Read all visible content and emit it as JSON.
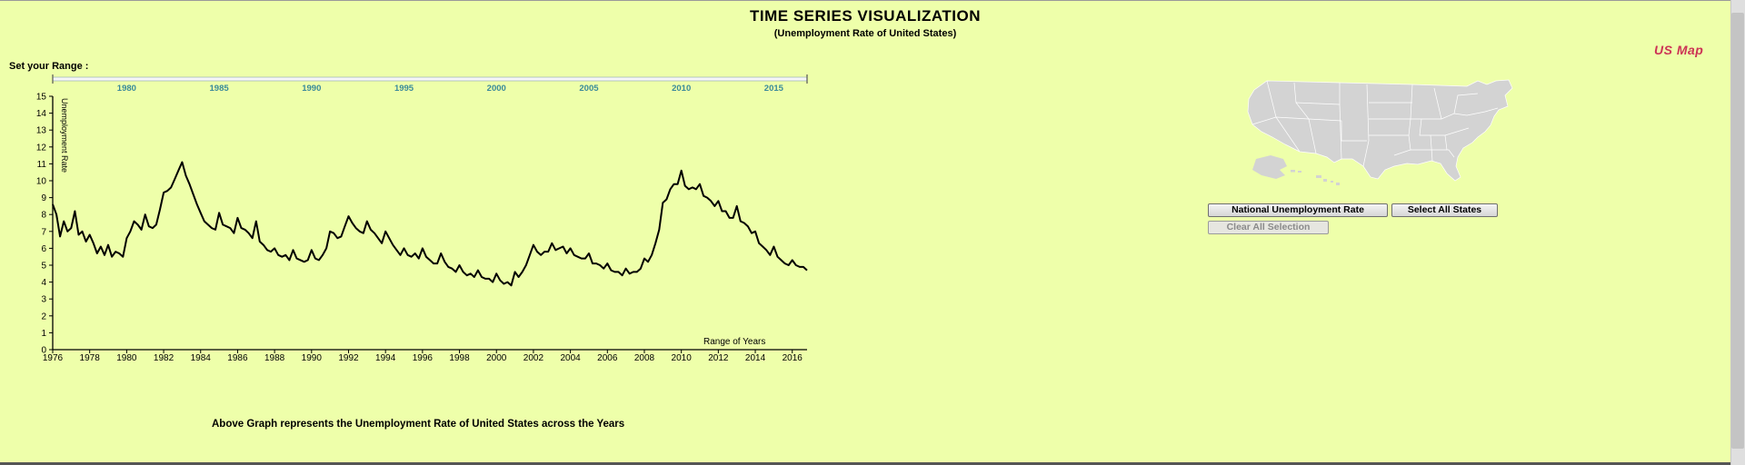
{
  "header": {
    "title": "TIME SERIES VISUALIZATION",
    "subtitle": "(Unemployment Rate of United States)"
  },
  "range_label": "Set your Range :",
  "us_map_link": "US Map",
  "caption": "Above Graph represents the Unemployment Rate of United States across the Years",
  "buttons": {
    "national": "National Unemployment Rate",
    "select_all": "Select All States",
    "clear_all": "Clear All Selection"
  },
  "colors": {
    "background": "#eeffaa",
    "brush_tick_labels": "#3a8a9a",
    "map_fill": "#d3d3d3",
    "us_map_link": "#cc3355",
    "line": "#000000"
  },
  "chart_data": {
    "type": "line",
    "title": "",
    "xlabel": "Range of Years",
    "ylabel": "Unemployment Rate",
    "xlim": [
      1976,
      2016.8
    ],
    "ylim": [
      0,
      15
    ],
    "x_ticks": [
      "1976",
      "1978",
      "1980",
      "1982",
      "1984",
      "1986",
      "1988",
      "1990",
      "1992",
      "1994",
      "1996",
      "1998",
      "2000",
      "2002",
      "2004",
      "2006",
      "2008",
      "2010",
      "2012",
      "2014",
      "2016"
    ],
    "y_ticks": [
      "0",
      "1",
      "2",
      "3",
      "4",
      "5",
      "6",
      "7",
      "8",
      "9",
      "10",
      "11",
      "12",
      "13",
      "14",
      "15"
    ],
    "brush_ticks": [
      "1980",
      "1985",
      "1990",
      "1995",
      "2000",
      "2005",
      "2010",
      "2015"
    ],
    "grid": false,
    "series": [
      {
        "x": [
          1976.0,
          1976.2,
          1976.4,
          1976.6,
          1976.8,
          1977.0,
          1977.2,
          1977.4,
          1977.6,
          1977.8,
          1978.0,
          1978.2,
          1978.4,
          1978.6,
          1978.8,
          1979.0,
          1979.2,
          1979.4,
          1979.6,
          1979.8,
          1980.0,
          1980.2,
          1980.4,
          1980.6,
          1980.8,
          1981.0,
          1981.2,
          1981.4,
          1981.6,
          1981.8,
          1982.0,
          1982.2,
          1982.4,
          1982.6,
          1982.8,
          1983.0,
          1983.2,
          1983.4,
          1983.6,
          1983.8,
          1984.0,
          1984.2,
          1984.4,
          1984.6,
          1984.8,
          1985.0,
          1985.2,
          1985.4,
          1985.6,
          1985.8,
          1986.0,
          1986.2,
          1986.4,
          1986.6,
          1986.8,
          1987.0,
          1987.2,
          1987.4,
          1987.6,
          1987.8,
          1988.0,
          1988.2,
          1988.4,
          1988.6,
          1988.8,
          1989.0,
          1989.2,
          1989.4,
          1989.6,
          1989.8,
          1990.0,
          1990.2,
          1990.4,
          1990.6,
          1990.8,
          1991.0,
          1991.2,
          1991.4,
          1991.6,
          1991.8,
          1992.0,
          1992.2,
          1992.4,
          1992.6,
          1992.8,
          1993.0,
          1993.2,
          1993.4,
          1993.6,
          1993.8,
          1994.0,
          1994.2,
          1994.4,
          1994.6,
          1994.8,
          1995.0,
          1995.2,
          1995.4,
          1995.6,
          1995.8,
          1996.0,
          1996.2,
          1996.4,
          1996.6,
          1996.8,
          1997.0,
          1997.2,
          1997.4,
          1997.6,
          1997.8,
          1998.0,
          1998.2,
          1998.4,
          1998.6,
          1998.8,
          1999.0,
          1999.2,
          1999.4,
          1999.6,
          1999.8,
          2000.0,
          2000.2,
          2000.4,
          2000.6,
          2000.8,
          2001.0,
          2001.2,
          2001.4,
          2001.6,
          2001.8,
          2002.0,
          2002.2,
          2002.4,
          2002.6,
          2002.8,
          2003.0,
          2003.2,
          2003.4,
          2003.6,
          2003.8,
          2004.0,
          2004.2,
          2004.4,
          2004.6,
          2004.8,
          2005.0,
          2005.2,
          2005.4,
          2005.6,
          2005.8,
          2006.0,
          2006.2,
          2006.4,
          2006.6,
          2006.8,
          2007.0,
          2007.2,
          2007.4,
          2007.6,
          2007.8,
          2008.0,
          2008.2,
          2008.4,
          2008.6,
          2008.8,
          2009.0,
          2009.2,
          2009.4,
          2009.6,
          2009.8,
          2010.0,
          2010.2,
          2010.4,
          2010.6,
          2010.8,
          2011.0,
          2011.2,
          2011.4,
          2011.6,
          2011.8,
          2012.0,
          2012.2,
          2012.4,
          2012.6,
          2012.8,
          2013.0,
          2013.2,
          2013.4,
          2013.6,
          2013.8,
          2014.0,
          2014.2,
          2014.4,
          2014.6,
          2014.8,
          2015.0,
          2015.2,
          2015.4,
          2015.6,
          2015.8,
          2016.0,
          2016.2,
          2016.4,
          2016.6,
          2016.8
        ],
        "y": [
          8.6,
          8.0,
          6.7,
          7.6,
          7.0,
          7.2,
          8.2,
          6.8,
          7.0,
          6.4,
          6.8,
          6.3,
          5.7,
          6.1,
          5.6,
          6.2,
          5.5,
          5.8,
          5.7,
          5.5,
          6.6,
          7.0,
          7.6,
          7.4,
          7.1,
          8.0,
          7.3,
          7.2,
          7.4,
          8.3,
          9.3,
          9.4,
          9.6,
          10.1,
          10.6,
          11.1,
          10.3,
          9.8,
          9.2,
          8.6,
          8.1,
          7.6,
          7.4,
          7.2,
          7.1,
          8.1,
          7.4,
          7.3,
          7.2,
          6.9,
          7.8,
          7.2,
          7.1,
          6.9,
          6.6,
          7.6,
          6.4,
          6.2,
          5.9,
          5.8,
          6.0,
          5.6,
          5.5,
          5.6,
          5.3,
          5.9,
          5.4,
          5.3,
          5.2,
          5.3,
          5.9,
          5.4,
          5.3,
          5.6,
          6.0,
          7.0,
          6.9,
          6.6,
          6.7,
          7.3,
          7.9,
          7.5,
          7.2,
          7.0,
          6.9,
          7.6,
          7.1,
          6.9,
          6.6,
          6.3,
          7.0,
          6.6,
          6.2,
          5.9,
          5.6,
          6.0,
          5.6,
          5.5,
          5.7,
          5.4,
          6.0,
          5.5,
          5.3,
          5.1,
          5.1,
          5.7,
          5.2,
          4.9,
          4.8,
          4.6,
          5.0,
          4.6,
          4.4,
          4.5,
          4.3,
          4.7,
          4.3,
          4.2,
          4.2,
          4.0,
          4.5,
          4.1,
          3.9,
          4.0,
          3.8,
          4.6,
          4.3,
          4.6,
          5.0,
          5.6,
          6.2,
          5.8,
          5.6,
          5.8,
          5.8,
          6.3,
          5.9,
          6.0,
          6.1,
          5.7,
          6.0,
          5.6,
          5.5,
          5.4,
          5.4,
          5.7,
          5.1,
          5.1,
          5.0,
          4.8,
          5.1,
          4.7,
          4.6,
          4.6,
          4.4,
          4.8,
          4.5,
          4.6,
          4.6,
          4.8,
          5.4,
          5.2,
          5.6,
          6.3,
          7.1,
          8.7,
          8.9,
          9.5,
          9.8,
          9.8,
          10.6,
          9.7,
          9.5,
          9.6,
          9.5,
          9.8,
          9.1,
          9.0,
          8.8,
          8.5,
          8.8,
          8.2,
          8.2,
          7.8,
          7.8,
          8.5,
          7.6,
          7.5,
          7.3,
          6.9,
          7.0,
          6.3,
          6.1,
          5.9,
          5.6,
          6.1,
          5.5,
          5.3,
          5.1,
          5.0,
          5.3,
          5.0,
          4.9,
          4.9,
          4.7
        ]
      }
    ]
  }
}
